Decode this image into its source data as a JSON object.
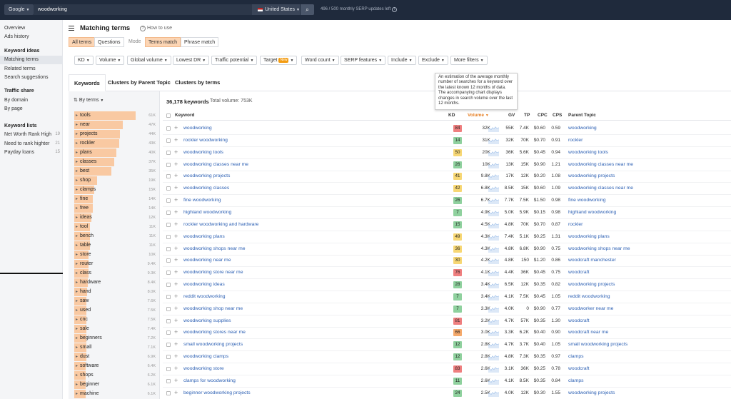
{
  "topbar": {
    "engine": "Google",
    "query": "woodworking",
    "country": "United States",
    "serp_updates": "496  /  500  monthly SERP updates left"
  },
  "sidebar": {
    "top_items": [
      "Overview",
      "Ads history"
    ],
    "sections": [
      {
        "title": "Keyword ideas",
        "items": [
          "Matching terms",
          "Related terms",
          "Search suggestions"
        ],
        "active": 0
      },
      {
        "title": "Traffic share",
        "items": [
          "By domain",
          "By page"
        ]
      },
      {
        "title": "Keyword lists",
        "items": [
          {
            "label": "Net Worth Rank High",
            "count": "19"
          },
          {
            "label": "Need to rank highter",
            "count": "21"
          },
          {
            "label": "Payday loans",
            "count": "15"
          }
        ]
      }
    ]
  },
  "header": {
    "title": "Matching terms",
    "how_to": "How to use",
    "seg1": [
      "All terms",
      "Questions"
    ],
    "mode_label": "Mode",
    "seg2": [
      "Terms match",
      "Phrase match"
    ]
  },
  "filters": [
    "KD",
    "Volume",
    "Global volume",
    "Lowest DR",
    "Traffic potential",
    "Target",
    "Word count",
    "SERP features",
    "Include",
    "Exclude",
    "More filters"
  ],
  "target_badge": "New",
  "tabs": [
    "Keywords",
    "Clusters by Parent Topic",
    "Clusters by terms"
  ],
  "tooltip": "An estimation of the average monthly number of searches for a keyword over the latest known 12 months of data. The accompanying chart displays changes in search volume over the last 12 months.",
  "terms_panel": {
    "label": "By terms",
    "terms": [
      {
        "term": "tools",
        "count": "61K",
        "frac": 1.0
      },
      {
        "term": "near",
        "count": "47K",
        "frac": 0.77
      },
      {
        "term": "projects",
        "count": "44K",
        "frac": 0.72
      },
      {
        "term": "rockler",
        "count": "43K",
        "frac": 0.7
      },
      {
        "term": "plans",
        "count": "40K",
        "frac": 0.66
      },
      {
        "term": "classes",
        "count": "37K",
        "frac": 0.61
      },
      {
        "term": "best",
        "count": "35K",
        "frac": 0.57
      },
      {
        "term": "shop",
        "count": "19K",
        "frac": 0.31
      },
      {
        "term": "clamps",
        "count": "15K",
        "frac": 0.25
      },
      {
        "term": "fine",
        "count": "14K",
        "frac": 0.23
      },
      {
        "term": "free",
        "count": "14K",
        "frac": 0.23
      },
      {
        "term": "ideas",
        "count": "12K",
        "frac": 0.2
      },
      {
        "term": "tool",
        "count": "11K",
        "frac": 0.18
      },
      {
        "term": "bench",
        "count": "11K",
        "frac": 0.18
      },
      {
        "term": "table",
        "count": "11K",
        "frac": 0.18
      },
      {
        "term": "store",
        "count": "10K",
        "frac": 0.16
      },
      {
        "term": "router",
        "count": "9.4K",
        "frac": 0.15
      },
      {
        "term": "class",
        "count": "9.3K",
        "frac": 0.15
      },
      {
        "term": "hardware",
        "count": "8.4K",
        "frac": 0.14
      },
      {
        "term": "hand",
        "count": "8.0K",
        "frac": 0.13
      },
      {
        "term": "saw",
        "count": "7.6K",
        "frac": 0.12
      },
      {
        "term": "used",
        "count": "7.5K",
        "frac": 0.12
      },
      {
        "term": "cnc",
        "count": "7.5K",
        "frac": 0.12
      },
      {
        "term": "sale",
        "count": "7.4K",
        "frac": 0.12
      },
      {
        "term": "beginners",
        "count": "7.2K",
        "frac": 0.12
      },
      {
        "term": "small",
        "count": "7.1K",
        "frac": 0.12
      },
      {
        "term": "dust",
        "count": "6.9K",
        "frac": 0.11
      },
      {
        "term": "software",
        "count": "6.4K",
        "frac": 0.1
      },
      {
        "term": "shops",
        "count": "6.2K",
        "frac": 0.1
      },
      {
        "term": "beginner",
        "count": "6.1K",
        "frac": 0.1
      },
      {
        "term": "machine",
        "count": "6.1K",
        "frac": 0.1
      }
    ]
  },
  "table": {
    "keyword_count": "36,178 keywords",
    "total_volume": "Total volume: 753K",
    "columns": [
      "Keyword",
      "KD",
      "Volume",
      "GV",
      "TP",
      "CPC",
      "CPS",
      "Parent Topic"
    ],
    "rows": [
      {
        "kw": "woodworking",
        "kd": "84",
        "vol": "32K",
        "gv": "55K",
        "tp": "7.4K",
        "cpc": "$0.60",
        "cps": "0.59",
        "parent": "woodworking"
      },
      {
        "kw": "rockler woodworking",
        "kd": "14",
        "vol": "31K",
        "gv": "32K",
        "tp": "70K",
        "cpc": "$0.70",
        "cps": "0.91",
        "parent": "rockler"
      },
      {
        "kw": "woodworking tools",
        "kd": "50",
        "vol": "20K",
        "gv": "36K",
        "tp": "5.6K",
        "cpc": "$0.45",
        "cps": "0.94",
        "parent": "woodworking tools"
      },
      {
        "kw": "woodworking classes near me",
        "kd": "26",
        "vol": "10K",
        "gv": "13K",
        "tp": "15K",
        "cpc": "$0.90",
        "cps": "1.21",
        "parent": "woodworking classes near me"
      },
      {
        "kw": "woodworking projects",
        "kd": "41",
        "vol": "9.8K",
        "gv": "17K",
        "tp": "12K",
        "cpc": "$0.20",
        "cps": "1.08",
        "parent": "woodworking projects"
      },
      {
        "kw": "woodworking classes",
        "kd": "42",
        "vol": "6.8K",
        "gv": "8.5K",
        "tp": "15K",
        "cpc": "$0.60",
        "cps": "1.09",
        "parent": "woodworking classes near me"
      },
      {
        "kw": "fine woodworking",
        "kd": "26",
        "vol": "6.7K",
        "gv": "7.7K",
        "tp": "7.5K",
        "cpc": "$1.50",
        "cps": "0.98",
        "parent": "fine woodworking"
      },
      {
        "kw": "highland woodworking",
        "kd": "7",
        "vol": "4.9K",
        "gv": "5.0K",
        "tp": "5.9K",
        "cpc": "$0.15",
        "cps": "0.98",
        "parent": "highland woodworking"
      },
      {
        "kw": "rockler woodworking and hardware",
        "kd": "15",
        "vol": "4.5K",
        "gv": "4.8K",
        "tp": "70K",
        "cpc": "$0.70",
        "cps": "0.87",
        "parent": "rockler"
      },
      {
        "kw": "woodworking plans",
        "kd": "49",
        "vol": "4.3K",
        "gv": "7.4K",
        "tp": "5.1K",
        "cpc": "$0.25",
        "cps": "1.31",
        "parent": "woodworking plans"
      },
      {
        "kw": "woodworking shops near me",
        "kd": "36",
        "vol": "4.3K",
        "gv": "4.8K",
        "tp": "6.8K",
        "cpc": "$0.90",
        "cps": "0.75",
        "parent": "woodworking shops near me"
      },
      {
        "kw": "woodworking near me",
        "kd": "30",
        "vol": "4.2K",
        "gv": "4.8K",
        "tp": "150",
        "cpc": "$1.20",
        "cps": "0.86",
        "parent": "woodcraft manchester"
      },
      {
        "kw": "woodworking store near me",
        "kd": "76",
        "vol": "4.1K",
        "gv": "4.4K",
        "tp": "36K",
        "cpc": "$0.45",
        "cps": "0.75",
        "parent": "woodcraft"
      },
      {
        "kw": "woodworking ideas",
        "kd": "28",
        "vol": "3.4K",
        "gv": "6.5K",
        "tp": "12K",
        "cpc": "$0.35",
        "cps": "0.82",
        "parent": "woodworking projects"
      },
      {
        "kw": "reddit woodworking",
        "kd": "7",
        "vol": "3.4K",
        "gv": "4.1K",
        "tp": "7.5K",
        "cpc": "$0.45",
        "cps": "1.05",
        "parent": "reddit woodworking"
      },
      {
        "kw": "woodworking shop near me",
        "kd": "7",
        "vol": "3.3K",
        "gv": "4.0K",
        "tp": "0",
        "cpc": "$0.90",
        "cps": "0.77",
        "parent": "woodworker near me"
      },
      {
        "kw": "woodworking supplies",
        "kd": "81",
        "vol": "3.2K",
        "gv": "4.7K",
        "tp": "57K",
        "cpc": "$0.35",
        "cps": "1.30",
        "parent": "woodcraft"
      },
      {
        "kw": "woodworking stores near me",
        "kd": "66",
        "vol": "3.0K",
        "gv": "3.3K",
        "tp": "6.2K",
        "cpc": "$0.40",
        "cps": "0.90",
        "parent": "woodcraft near me"
      },
      {
        "kw": "small woodworking projects",
        "kd": "12",
        "vol": "2.8K",
        "gv": "4.7K",
        "tp": "3.7K",
        "cpc": "$0.40",
        "cps": "1.05",
        "parent": "small woodworking projects"
      },
      {
        "kw": "woodworking clamps",
        "kd": "12",
        "vol": "2.8K",
        "gv": "4.8K",
        "tp": "7.3K",
        "cpc": "$0.35",
        "cps": "0.97",
        "parent": "clamps"
      },
      {
        "kw": "woodworking store",
        "kd": "83",
        "vol": "2.6K",
        "gv": "3.1K",
        "tp": "36K",
        "cpc": "$0.25",
        "cps": "0.78",
        "parent": "woodcraft"
      },
      {
        "kw": "clamps for woodworking",
        "kd": "11",
        "vol": "2.6K",
        "gv": "4.1K",
        "tp": "8.5K",
        "cpc": "$0.35",
        "cps": "0.84",
        "parent": "clamps"
      },
      {
        "kw": "beginner woodworking projects",
        "kd": "24",
        "vol": "2.5K",
        "gv": "4.0K",
        "tp": "12K",
        "cpc": "$0.30",
        "cps": "1.55",
        "parent": "woodworking projects"
      }
    ]
  },
  "colors": {
    "kd_green": "#8fd19e",
    "kd_yellow": "#f7d774",
    "kd_orange": "#f5a96b",
    "kd_red": "#ef7f7f",
    "accent": "#f39c12",
    "link": "#2b5fb3"
  }
}
